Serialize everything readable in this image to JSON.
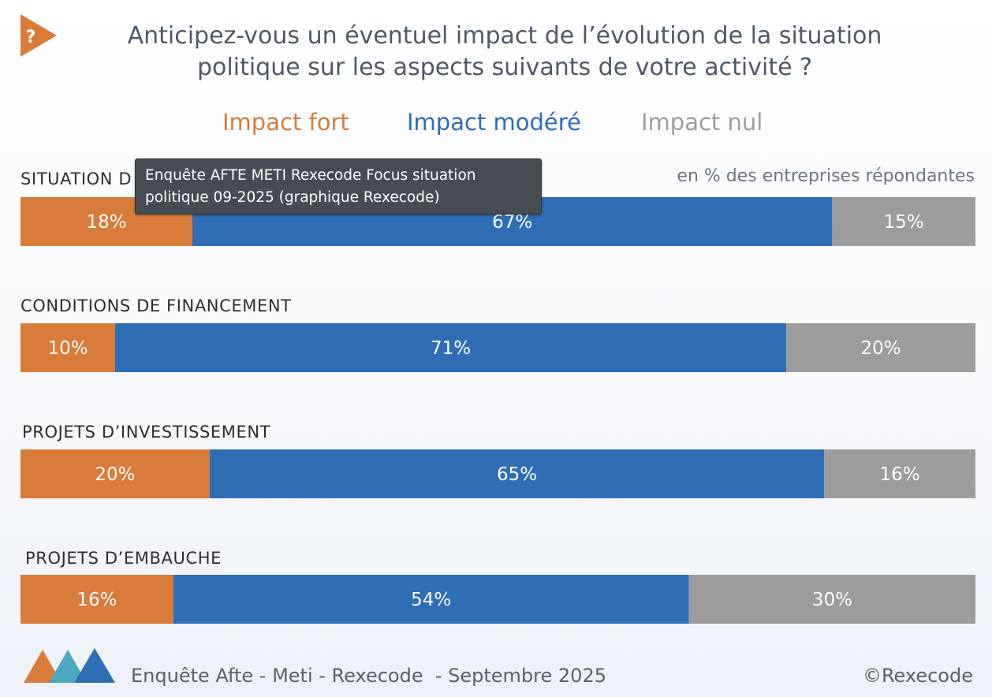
{
  "title_line1": "Anticipez-vous un éventuel impact de l’évolution de la situation",
  "title_line2": "politique sur les aspects suivants de votre activité ?",
  "icon_glyph": "?",
  "subtitle": "en % des entreprises répondantes",
  "tooltip_line1": "Enquête AFTE METI Rexecode Focus situation",
  "tooltip_line2": "politique 09-2025 (graphique Rexecode)",
  "footer": "Enquête Afte - Meti - Rexecode  - Septembre 2025",
  "copyright": "©Rexecode",
  "colors": {
    "fort": "#d97b3a",
    "modere": "#2f6db5",
    "nul": "#9c9c9c",
    "logo1": "#d97b3a",
    "logo2": "#4aa9c1",
    "logo3": "#2f6db5"
  },
  "chart_data": {
    "type": "bar",
    "orientation": "horizontal-stacked-100",
    "categories": [
      "SITUATION D",
      "CONDITIONS DE FINANCEMENT",
      "PROJETS D’INVESTISSEMENT",
      "PROJETS D’EMBAUCHE"
    ],
    "series": [
      {
        "name": "Impact fort",
        "color": "#d97b3a",
        "values": [
          18,
          10,
          20,
          16
        ],
        "labels": [
          "18%",
          "10%",
          "20%",
          "16%"
        ]
      },
      {
        "name": "Impact modéré",
        "color": "#2f6db5",
        "values": [
          67,
          71,
          65,
          54
        ],
        "labels": [
          "67%",
          "71%",
          "65%",
          "54%"
        ]
      },
      {
        "name": "Impact nul",
        "color": "#9c9c9c",
        "values": [
          15,
          20,
          16,
          30
        ],
        "labels": [
          "15%",
          "20%",
          "16%",
          "30%"
        ]
      }
    ],
    "legend": "top-center",
    "unit": "%"
  }
}
